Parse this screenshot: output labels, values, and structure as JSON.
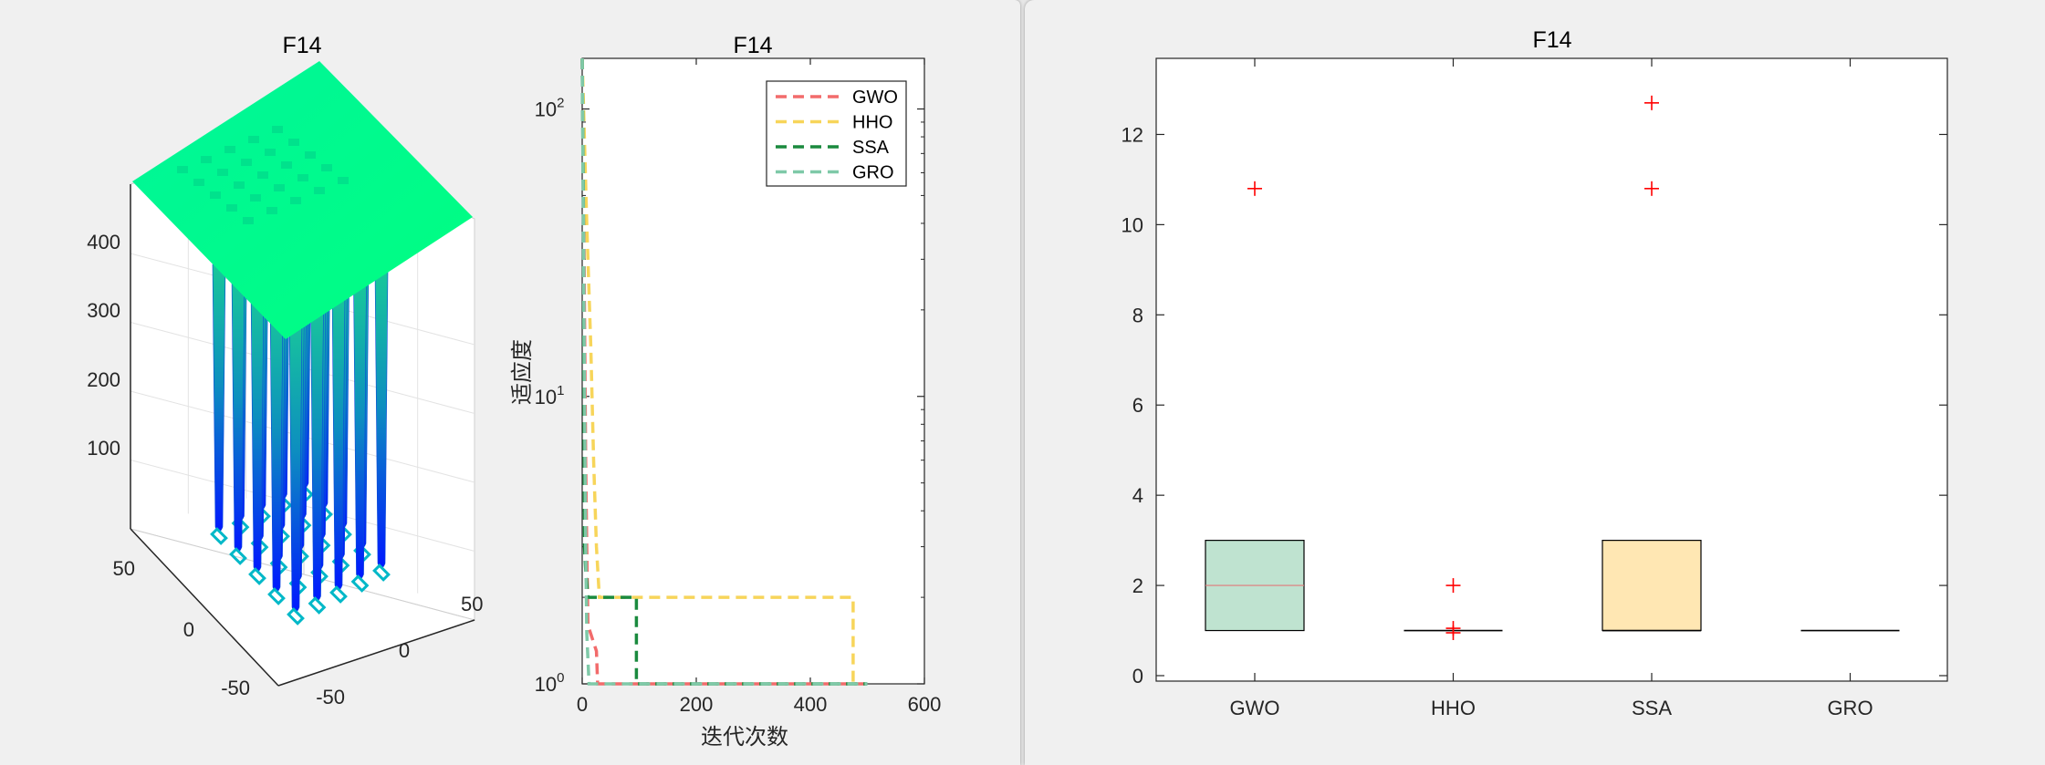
{
  "chart_data": [
    {
      "type": "surface3d",
      "title": "F14",
      "zlim": [
        0,
        500
      ],
      "zticks": [
        "100",
        "200",
        "300",
        "400"
      ],
      "xticks": [
        "-50",
        "0",
        "50"
      ],
      "yticks": [
        "-50",
        "0",
        "50"
      ],
      "grid": true,
      "colors": {
        "top": "#00ff80",
        "low": "#0018ff"
      }
    },
    {
      "type": "line",
      "title": "F14",
      "xlabel": "迭代次数",
      "ylabel": "适应度",
      "yscale": "log",
      "xlim": [
        0,
        600
      ],
      "ylim": [
        1,
        150
      ],
      "xticks": [
        "0",
        "200",
        "400",
        "600"
      ],
      "yticks": [
        {
          "base": "10",
          "exp": "0"
        },
        {
          "base": "10",
          "exp": "1"
        },
        {
          "base": "10",
          "exp": "2"
        }
      ],
      "legend_position": "top-right",
      "series": [
        {
          "name": "GWO",
          "color": "#f26b6b",
          "points": [
            [
              0,
              150
            ],
            [
              2,
              60
            ],
            [
              4,
              20
            ],
            [
              6,
              6
            ],
            [
              8,
              3
            ],
            [
              10,
              1.6
            ],
            [
              25,
              1.3
            ],
            [
              27,
              1
            ],
            [
              500,
              1
            ]
          ]
        },
        {
          "name": "HHO",
          "color": "#f7d55a",
          "points": [
            [
              0,
              150
            ],
            [
              8,
              40
            ],
            [
              15,
              15
            ],
            [
              20,
              6
            ],
            [
              25,
              3
            ],
            [
              30,
              2
            ],
            [
              475,
              2
            ],
            [
              475,
              1
            ]
          ]
        },
        {
          "name": "SSA",
          "color": "#1a8a3e",
          "points": [
            [
              0,
              150
            ],
            [
              2,
              50
            ],
            [
              4,
              3
            ],
            [
              6,
              2.5
            ],
            [
              10,
              2
            ],
            [
              95,
              2
            ],
            [
              95,
              1
            ],
            [
              500,
              1
            ]
          ]
        },
        {
          "name": "GRO",
          "color": "#7fc9a8",
          "points": [
            [
              0,
              150
            ],
            [
              2,
              40
            ],
            [
              4,
              10
            ],
            [
              6,
              3
            ],
            [
              8,
              1.5
            ],
            [
              12,
              1
            ],
            [
              500,
              1
            ]
          ]
        }
      ]
    },
    {
      "type": "box",
      "title": "F14",
      "categories": [
        "GWO",
        "HHO",
        "SSA",
        "GRO"
      ],
      "ylim": [
        0,
        13
      ],
      "yticks": [
        "0",
        "2",
        "4",
        "6",
        "8",
        "10",
        "12"
      ],
      "boxes": [
        {
          "name": "GWO",
          "q1": 1,
          "median": 2,
          "q3": 3,
          "fill": "#bfe3d0",
          "median_color": "#e07a7a",
          "outliers": [
            10.8
          ]
        },
        {
          "name": "HHO",
          "q1": 1,
          "median": 1,
          "q3": 1,
          "fill": "none",
          "median_color": "#000000",
          "outliers": [
            2,
            1.05,
            0.95
          ]
        },
        {
          "name": "SSA",
          "q1": 1,
          "median": 1,
          "q3": 3,
          "fill": "#ffe7b3",
          "median_color": "#000000",
          "outliers": [
            12.7,
            10.8
          ]
        },
        {
          "name": "GRO",
          "q1": 1,
          "median": 1,
          "q3": 1,
          "fill": "none",
          "median_color": "#000000",
          "outliers": []
        }
      ],
      "outlier_color": "#ff0000"
    }
  ]
}
